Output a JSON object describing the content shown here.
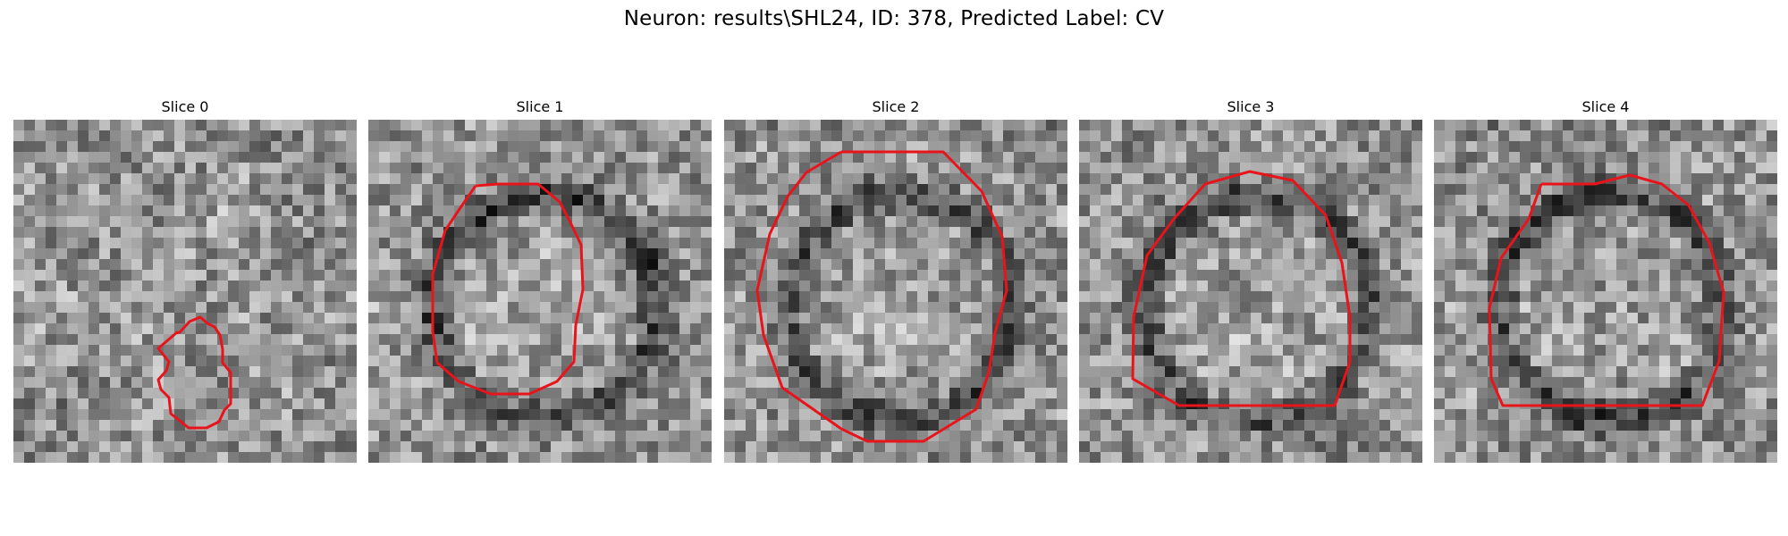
{
  "figure": {
    "title": "Neuron: results\\SHL24, ID: 378, Predicted Label: CV"
  },
  "panels": [
    {
      "title": "Slice 0"
    },
    {
      "title": "Slice 1"
    },
    {
      "title": "Slice 2"
    },
    {
      "title": "Slice 3"
    },
    {
      "title": "Slice 4"
    }
  ],
  "colors": {
    "contour": "#e8141b",
    "background": "#ffffff"
  }
}
